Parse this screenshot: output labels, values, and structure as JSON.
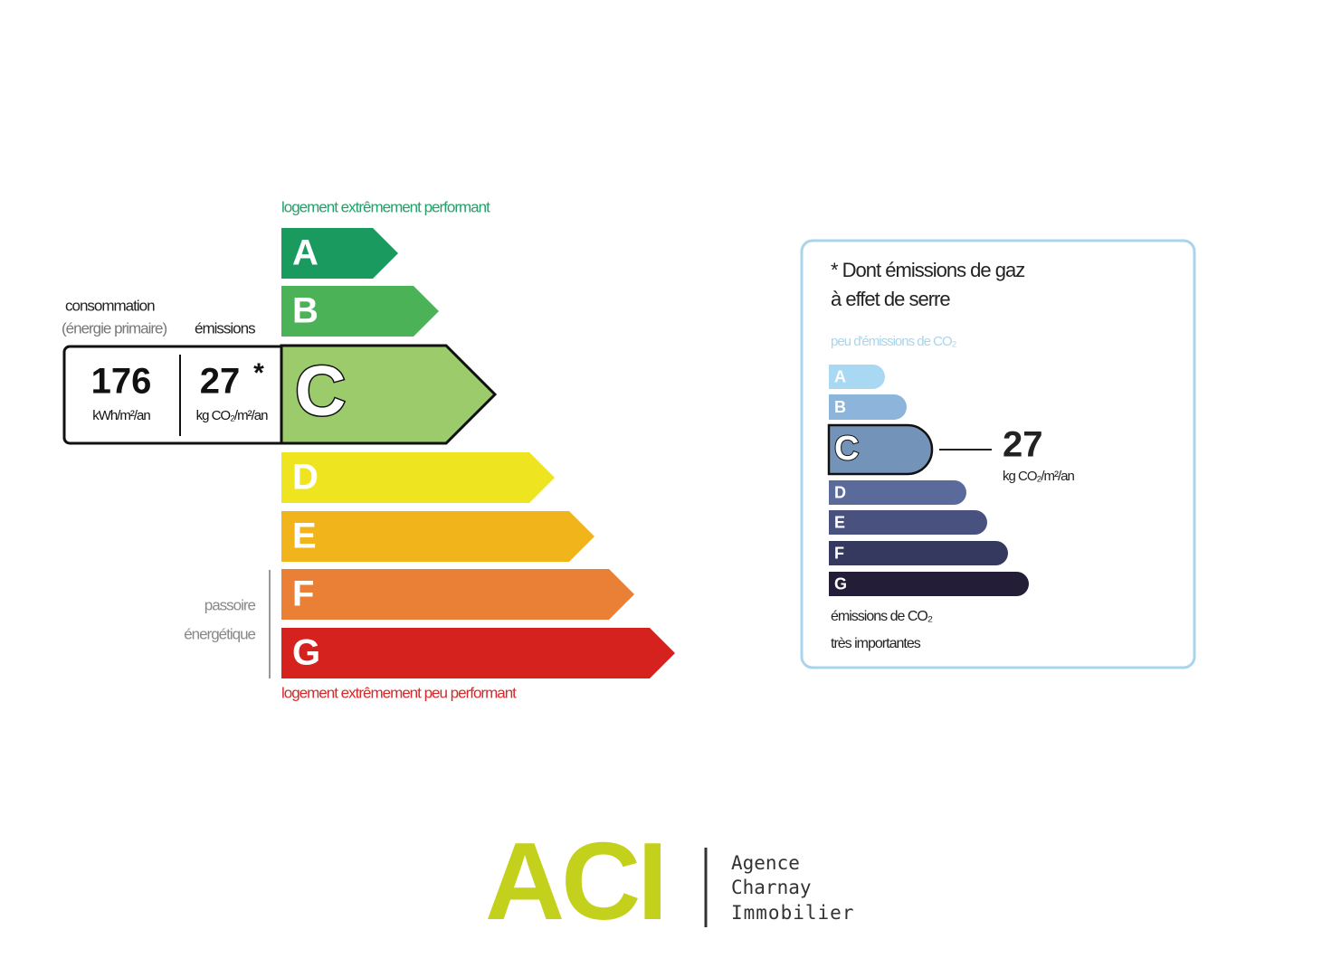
{
  "energy_label": {
    "top_caption": "logement extrêmement performant",
    "bottom_caption": "logement extrêmement peu performant",
    "classes": [
      "A",
      "B",
      "C",
      "D",
      "E",
      "F",
      "G"
    ],
    "consumption_label": "consommation",
    "consumption_sublabel": "(énergie primaire)",
    "emissions_label": "émissions",
    "consumption_value": 176,
    "consumption_unit": "kWh/m²/an",
    "emissions_value": 27,
    "emissions_marker": "*",
    "emissions_unit": "kg CO₂/m²/an",
    "side_note": [
      "passoire",
      "énergétique"
    ]
  },
  "ghg_label": {
    "title_lines": [
      "* Dont émissions de gaz",
      "à effet de serre"
    ],
    "top_caption": "peu d'émissions de CO₂",
    "classes": [
      "A",
      "B",
      "C",
      "D",
      "E",
      "F",
      "G"
    ],
    "value": 27,
    "unit": "kg CO₂/m²/an",
    "bottom_caption_lines": [
      "émissions de CO₂",
      "très importantes"
    ]
  },
  "logo": {
    "mark": "ACI",
    "lines": [
      "Agence",
      "Charnay",
      "Immobilier"
    ]
  }
}
